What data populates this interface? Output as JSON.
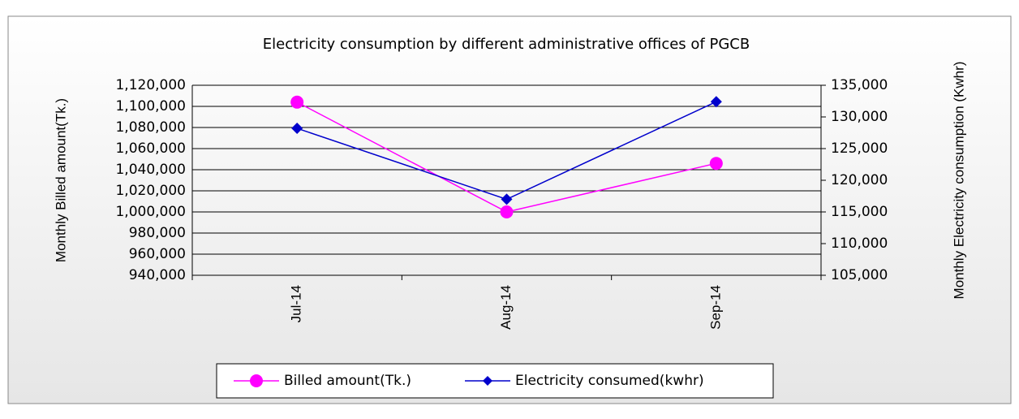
{
  "chart_data": {
    "type": "line",
    "title": "Electricity consumption by different administrative offices of PGCB",
    "y_label": "Monthly Billed amount(Tk.)",
    "y2_label": "Monthly Electricity consumption (Kwhr)",
    "categories": [
      "Jul-14",
      "Aug-14",
      "Sep-14"
    ],
    "series": [
      {
        "name": "Billed amount(Tk.)",
        "color": "#ff00ff",
        "marker": "circle",
        "values": [
          1104000,
          1000000,
          1046000
        ]
      },
      {
        "name": "Electricity consumed(kwhr)",
        "color": "#0000cc",
        "marker": "diamond",
        "axis": "y2",
        "values": [
          128200,
          117000,
          132400
        ]
      }
    ],
    "ylim": [
      940000,
      1120000
    ],
    "yticks": [
      {
        "value": 940000,
        "label": "940,000"
      },
      {
        "value": 960000,
        "label": "960,000"
      },
      {
        "value": 980000,
        "label": "980,000"
      },
      {
        "value": 1000000,
        "label": "1,000,000"
      },
      {
        "value": 1020000,
        "label": "1,020,000"
      },
      {
        "value": 1040000,
        "label": "1,040,000"
      },
      {
        "value": 1060000,
        "label": "1,060,000"
      },
      {
        "value": 1080000,
        "label": "1,080,000"
      },
      {
        "value": 1100000,
        "label": "1,100,000"
      },
      {
        "value": 1120000,
        "label": "1,120,000"
      }
    ],
    "y2lim": [
      105000,
      135000
    ],
    "y2ticks": [
      {
        "value": 105000,
        "label": "105,000"
      },
      {
        "value": 110000,
        "label": "110,000"
      },
      {
        "value": 115000,
        "label": "115,000"
      },
      {
        "value": 120000,
        "label": "120,000"
      },
      {
        "value": 125000,
        "label": "125,000"
      },
      {
        "value": 130000,
        "label": "130,000"
      },
      {
        "value": 135000,
        "label": "135,000"
      }
    ],
    "grid": true,
    "legend": "bottom"
  }
}
